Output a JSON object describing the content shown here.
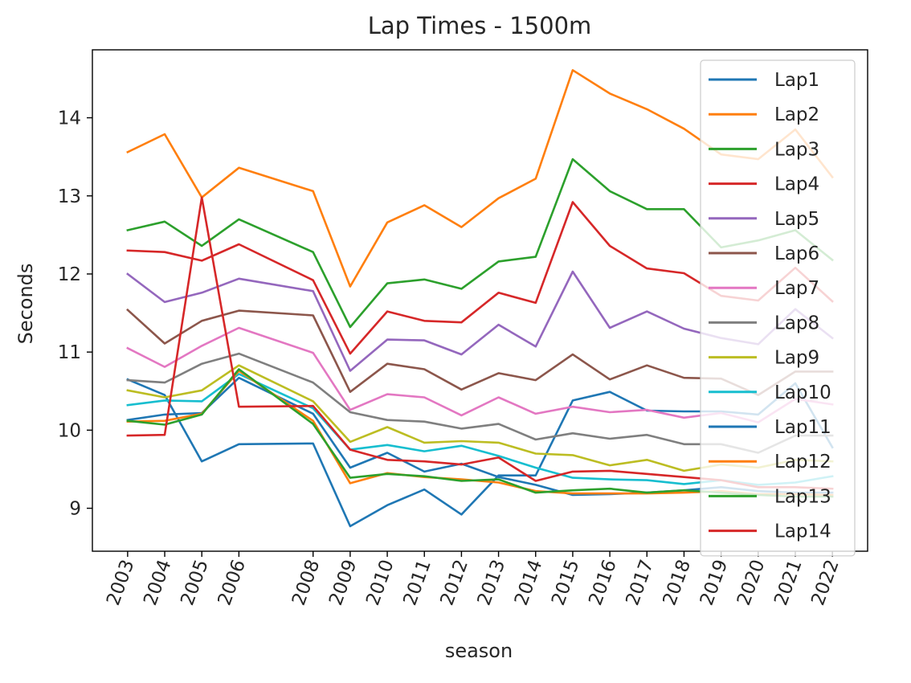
{
  "chart_data": {
    "type": "line",
    "title": "Lap Times - 1500m",
    "xlabel": "season",
    "ylabel": "Seconds",
    "x": [
      2003,
      2004,
      2005,
      2006,
      2008,
      2009,
      2010,
      2011,
      2012,
      2013,
      2014,
      2015,
      2016,
      2017,
      2018,
      2019,
      2020,
      2021,
      2022
    ],
    "x_tick_labels": [
      "2003",
      "2004",
      "2005",
      "2006",
      "2008",
      "2009",
      "2010",
      "2011",
      "2012",
      "2013",
      "2014",
      "2015",
      "2016",
      "2017",
      "2018",
      "2019",
      "2020",
      "2021",
      "2022"
    ],
    "y_ticks": [
      9,
      10,
      11,
      12,
      13,
      14
    ],
    "ylim": [
      8.45,
      14.87
    ],
    "grid": false,
    "legend_position": "upper right",
    "series": [
      {
        "name": "Lap1",
        "color": "#1f77b4",
        "values": [
          10.65,
          10.45,
          9.6,
          9.82,
          9.83,
          8.77,
          9.04,
          9.24,
          8.92,
          9.42,
          9.42,
          10.38,
          10.49,
          10.25,
          10.24,
          10.24,
          10.2,
          10.6,
          9.78
        ]
      },
      {
        "name": "Lap2",
        "color": "#ff7f0e",
        "values": [
          13.56,
          13.79,
          12.98,
          13.36,
          13.06,
          11.84,
          12.66,
          12.88,
          12.6,
          12.97,
          13.22,
          14.61,
          14.31,
          14.11,
          13.86,
          13.53,
          13.47,
          13.85,
          13.24
        ]
      },
      {
        "name": "Lap3",
        "color": "#2ca02c",
        "values": [
          12.56,
          12.67,
          12.36,
          12.7,
          12.28,
          11.32,
          11.88,
          11.93,
          11.81,
          12.16,
          12.22,
          13.47,
          13.06,
          12.83,
          12.83,
          12.34,
          12.43,
          12.56,
          12.18
        ]
      },
      {
        "name": "Lap4",
        "color": "#d62728",
        "values": [
          12.3,
          12.28,
          12.17,
          12.38,
          11.92,
          10.98,
          11.52,
          11.4,
          11.38,
          11.76,
          11.63,
          12.92,
          12.36,
          12.07,
          12.01,
          11.72,
          11.66,
          12.08,
          11.65
        ]
      },
      {
        "name": "Lap5",
        "color": "#9467bd",
        "values": [
          12.0,
          11.64,
          11.76,
          11.94,
          11.78,
          10.76,
          11.16,
          11.15,
          10.97,
          11.35,
          11.07,
          12.03,
          11.31,
          11.52,
          11.3,
          11.18,
          11.1,
          11.55,
          11.18
        ]
      },
      {
        "name": "Lap6",
        "color": "#8c564b",
        "values": [
          11.54,
          11.11,
          11.4,
          11.53,
          11.47,
          10.49,
          10.85,
          10.78,
          10.52,
          10.73,
          10.64,
          10.97,
          10.65,
          10.83,
          10.67,
          10.66,
          10.45,
          10.75,
          10.75
        ]
      },
      {
        "name": "Lap7",
        "color": "#e377c2",
        "values": [
          11.05,
          10.81,
          11.08,
          11.31,
          10.99,
          10.26,
          10.46,
          10.42,
          10.19,
          10.42,
          10.21,
          10.3,
          10.23,
          10.26,
          10.16,
          10.22,
          10.1,
          10.4,
          10.33
        ]
      },
      {
        "name": "Lap8",
        "color": "#7f7f7f",
        "values": [
          10.64,
          10.61,
          10.85,
          10.98,
          10.61,
          10.23,
          10.13,
          10.11,
          10.02,
          10.08,
          9.88,
          9.96,
          9.89,
          9.94,
          9.82,
          9.82,
          9.71,
          9.93,
          9.93
        ]
      },
      {
        "name": "Lap9",
        "color": "#bcbd22",
        "values": [
          10.51,
          10.42,
          10.51,
          10.83,
          10.37,
          9.85,
          10.04,
          9.84,
          9.86,
          9.84,
          9.7,
          9.68,
          9.55,
          9.62,
          9.48,
          9.56,
          9.52,
          9.62,
          9.6
        ]
      },
      {
        "name": "Lap10",
        "color": "#17becf",
        "values": [
          10.32,
          10.38,
          10.37,
          10.72,
          10.28,
          9.75,
          9.81,
          9.73,
          9.8,
          9.67,
          9.52,
          9.39,
          9.37,
          9.36,
          9.31,
          9.36,
          9.3,
          9.33,
          9.41
        ]
      },
      {
        "name": "Lap11",
        "color": "#1f77b4",
        "values": [
          10.13,
          10.2,
          10.22,
          10.67,
          10.21,
          9.52,
          9.71,
          9.47,
          9.57,
          9.4,
          9.3,
          9.17,
          9.18,
          9.2,
          9.23,
          9.27,
          9.22,
          9.2,
          9.2
        ]
      },
      {
        "name": "Lap12",
        "color": "#ff7f0e",
        "values": [
          10.11,
          10.12,
          10.21,
          10.76,
          10.12,
          9.32,
          9.45,
          9.4,
          9.37,
          9.33,
          9.22,
          9.19,
          9.19,
          9.19,
          9.2,
          9.22,
          9.18,
          9.18,
          9.17
        ]
      },
      {
        "name": "Lap13",
        "color": "#2ca02c",
        "values": [
          10.12,
          10.07,
          10.2,
          10.78,
          10.08,
          9.39,
          9.44,
          9.41,
          9.35,
          9.37,
          9.2,
          9.23,
          9.25,
          9.2,
          9.23,
          9.2,
          9.17,
          9.15,
          9.15
        ]
      },
      {
        "name": "Lap14",
        "color": "#d62728",
        "values": [
          9.93,
          9.94,
          12.98,
          10.3,
          10.31,
          9.75,
          9.62,
          9.6,
          9.56,
          9.65,
          9.35,
          9.47,
          9.48,
          9.44,
          9.4,
          9.36,
          9.27,
          9.27,
          9.25
        ]
      }
    ]
  }
}
